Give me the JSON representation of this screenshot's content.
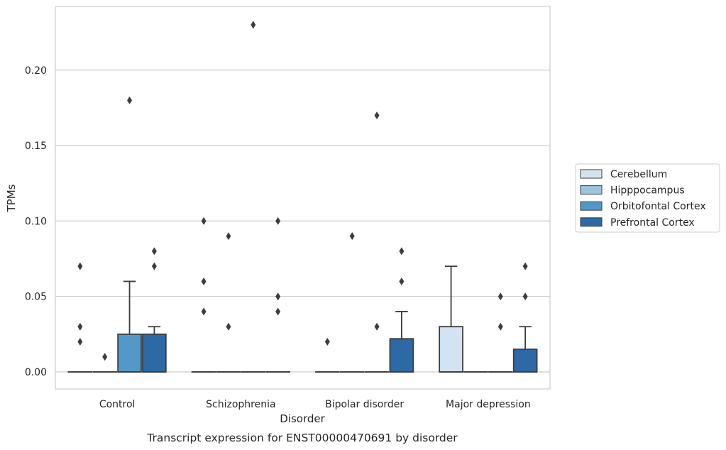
{
  "chart_data": {
    "type": "boxplot",
    "title": "Transcript expression for ENST00000470691 by disorder",
    "xlabel": "Disorder",
    "ylabel": "TPMs",
    "ylim": [
      -0.011,
      0.242
    ],
    "yticks": [
      "0.00",
      "0.05",
      "0.10",
      "0.15",
      "0.20"
    ],
    "ytick_values": [
      0.0,
      0.05,
      0.1,
      0.15,
      0.2
    ],
    "grid": "horizontal",
    "legend_position": "right",
    "categories": [
      "Control",
      "Schizophrenia",
      "Bipolar disorder",
      "Major depression"
    ],
    "series": [
      {
        "name": "Cerebellum",
        "color": "#d4e3f2",
        "boxes": [
          {
            "q1": 0,
            "median": 0,
            "q3": 0,
            "whislo": 0,
            "whishi": 0,
            "fliers": [
              0.07,
              0.03,
              0.02
            ]
          },
          {
            "q1": 0,
            "median": 0,
            "q3": 0,
            "whislo": 0,
            "whishi": 0,
            "fliers": [
              0.1,
              0.06,
              0.04
            ]
          },
          {
            "q1": 0,
            "median": 0,
            "q3": 0,
            "whislo": 0,
            "whishi": 0,
            "fliers": [
              0.02
            ]
          },
          {
            "q1": 0,
            "median": 0,
            "q3": 0.03,
            "whislo": 0,
            "whishi": 0.07,
            "fliers": []
          }
        ]
      },
      {
        "name": "Hipppocampus",
        "color": "#9bc4df",
        "boxes": [
          {
            "q1": 0,
            "median": 0,
            "q3": 0,
            "whislo": 0,
            "whishi": 0,
            "fliers": [
              0.01
            ]
          },
          {
            "q1": 0,
            "median": 0,
            "q3": 0,
            "whislo": 0,
            "whishi": 0,
            "fliers": [
              0.09,
              0.03
            ]
          },
          {
            "q1": 0,
            "median": 0,
            "q3": 0,
            "whislo": 0,
            "whishi": 0,
            "fliers": [
              0.09
            ]
          },
          {
            "q1": 0,
            "median": 0,
            "q3": 0,
            "whislo": 0,
            "whishi": 0,
            "fliers": []
          }
        ]
      },
      {
        "name": "Orbitofontal Cortex",
        "color": "#5498c8",
        "boxes": [
          {
            "q1": 0,
            "median": 0,
            "q3": 0.025,
            "whislo": 0,
            "whishi": 0.06,
            "fliers": [
              0.18
            ]
          },
          {
            "q1": 0,
            "median": 0,
            "q3": 0,
            "whislo": 0,
            "whishi": 0,
            "fliers": [
              0.23
            ]
          },
          {
            "q1": 0,
            "median": 0,
            "q3": 0,
            "whislo": 0,
            "whishi": 0,
            "fliers": [
              0.17,
              0.03
            ]
          },
          {
            "q1": 0,
            "median": 0,
            "q3": 0,
            "whislo": 0,
            "whishi": 0,
            "fliers": [
              0.05,
              0.03
            ]
          }
        ]
      },
      {
        "name": "Prefrontal Cortex",
        "color": "#2c69a5",
        "boxes": [
          {
            "q1": 0,
            "median": 0,
            "q3": 0.025,
            "whislo": 0,
            "whishi": 0.03,
            "fliers": [
              0.08,
              0.07
            ]
          },
          {
            "q1": 0,
            "median": 0,
            "q3": 0,
            "whislo": 0,
            "whishi": 0,
            "fliers": [
              0.1,
              0.05,
              0.04
            ]
          },
          {
            "q1": 0,
            "median": 0,
            "q3": 0.022,
            "whislo": 0,
            "whishi": 0.04,
            "fliers": [
              0.08,
              0.06
            ]
          },
          {
            "q1": 0,
            "median": 0,
            "q3": 0.015,
            "whislo": 0,
            "whishi": 0.03,
            "fliers": [
              0.07,
              0.05
            ]
          }
        ]
      }
    ],
    "colors": {
      "grid": "#cccccc",
      "frame": "#cccccc",
      "line": "#3d3d3d",
      "text": "#262626"
    }
  }
}
